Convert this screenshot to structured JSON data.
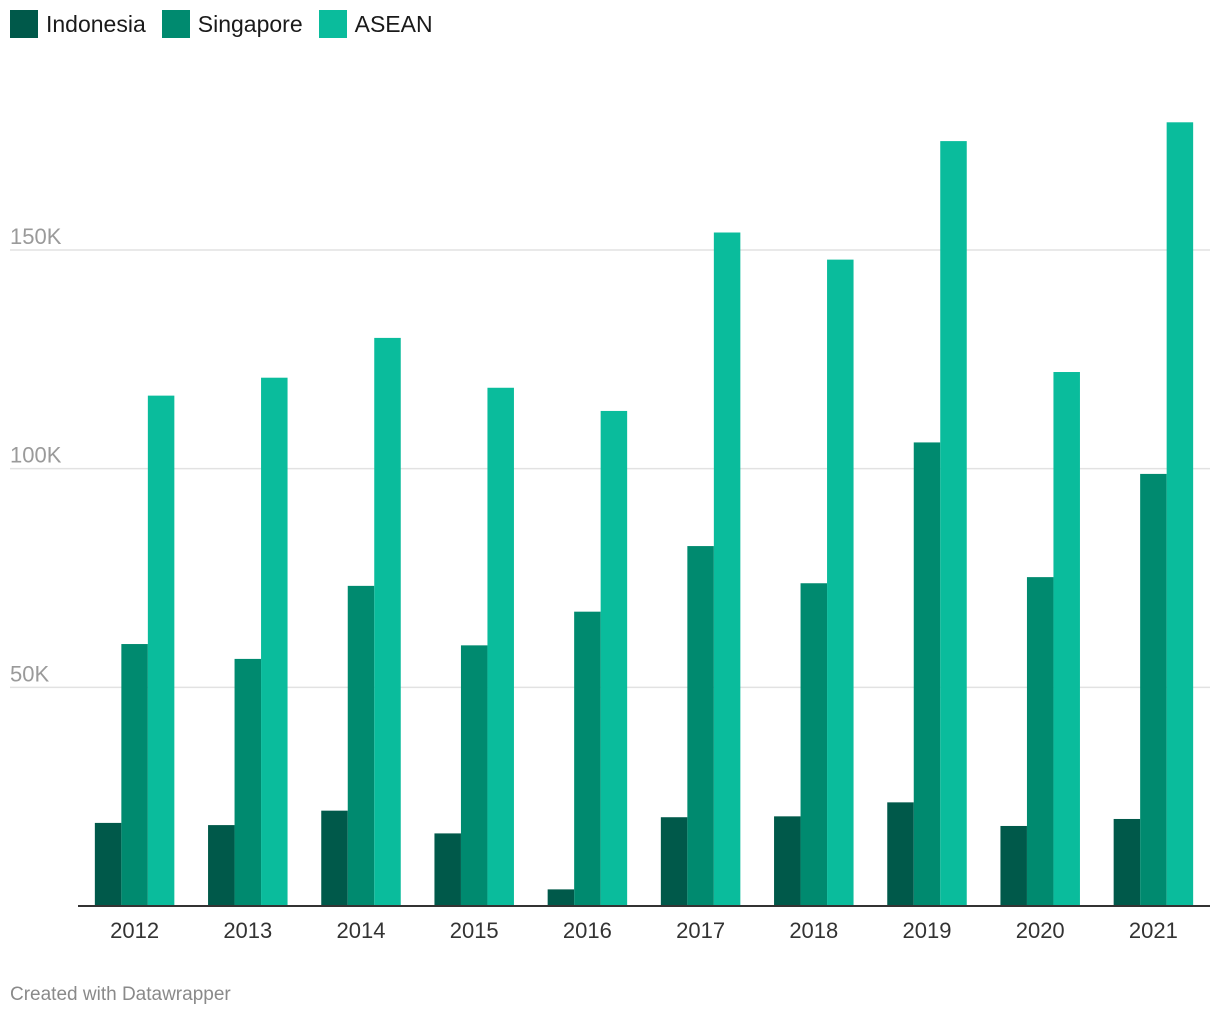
{
  "chart_data": {
    "type": "bar",
    "title": "",
    "xlabel": "",
    "ylabel": "",
    "categories": [
      "2012",
      "2013",
      "2014",
      "2015",
      "2016",
      "2017",
      "2018",
      "2019",
      "2020",
      "2021"
    ],
    "series": [
      {
        "name": "Indonesia",
        "color": "#00594a",
        "values": [
          19000,
          18500,
          21800,
          16600,
          3800,
          20300,
          20500,
          23700,
          18300,
          19900
        ]
      },
      {
        "name": "Singapore",
        "color": "#008a6f",
        "values": [
          59900,
          56500,
          73200,
          59600,
          67300,
          82300,
          73800,
          106000,
          75200,
          98800
        ]
      },
      {
        "name": "ASEAN",
        "color": "#0abc9c",
        "values": [
          116700,
          120800,
          129900,
          118500,
          113200,
          154000,
          147800,
          174900,
          122100,
          179200
        ]
      }
    ],
    "yticks": [
      50000,
      100000,
      150000
    ],
    "ytick_labels": [
      "50K",
      "100K",
      "150K"
    ],
    "ylim": [
      0,
      190000
    ],
    "grid": true,
    "legend_position": "top-left"
  },
  "footer": {
    "credit": "Created with Datawrapper"
  }
}
